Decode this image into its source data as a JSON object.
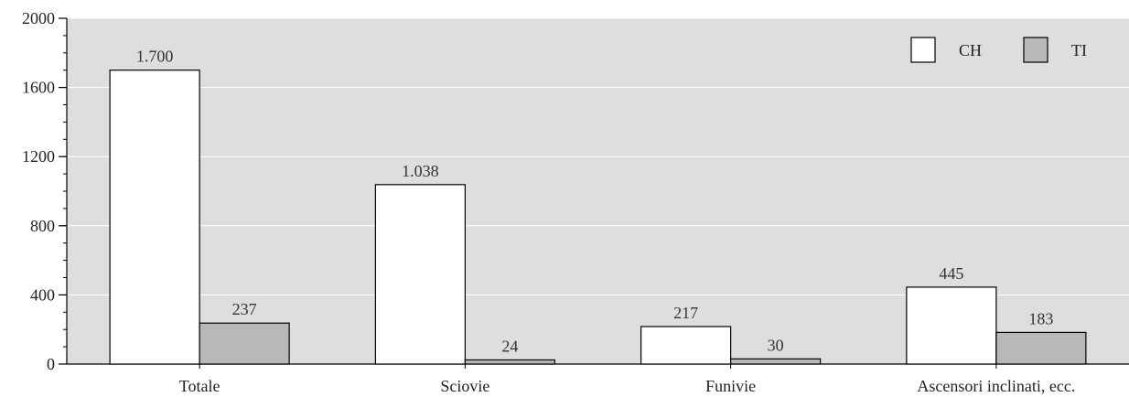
{
  "chart_data": {
    "type": "bar",
    "title": "",
    "xlabel": "",
    "ylabel": "",
    "ylim": [
      0,
      2000
    ],
    "yticks": [
      0,
      400,
      800,
      1200,
      1600,
      2000
    ],
    "ytick_labels": [
      "0",
      "400",
      "800",
      "1200",
      "1600",
      "2000"
    ],
    "grid": true,
    "legend_position": "top-right",
    "categories": [
      "Totale",
      "Sciovie",
      "Funivie",
      "Ascensori inclinati, ecc."
    ],
    "series": [
      {
        "name": "CH",
        "color": "#ffffff",
        "values": [
          1700,
          1038,
          217,
          445
        ],
        "labels": [
          "1.700",
          "1.038",
          "217",
          "445"
        ]
      },
      {
        "name": "TI",
        "color": "#b8b8b8",
        "values": [
          237,
          24,
          30,
          183
        ],
        "labels": [
          "237",
          "24",
          "30",
          "183"
        ]
      }
    ],
    "background_color": "#dedede",
    "grid_color": "#ffffff"
  }
}
